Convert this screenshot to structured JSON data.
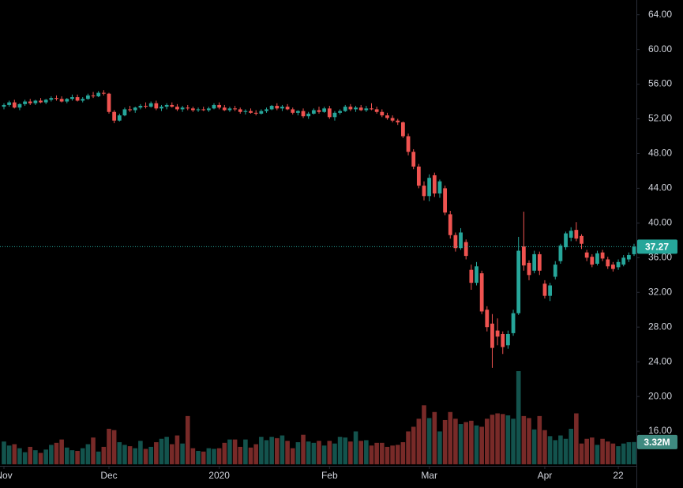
{
  "chart_data": {
    "type": "candlestick",
    "xlim": [
      -0.75,
      120.45
    ],
    "xticks": [
      {
        "value": 0,
        "label": "Nov"
      },
      {
        "value": 20,
        "label": "Dec"
      },
      {
        "value": 41,
        "label": "2020"
      },
      {
        "value": 62,
        "label": "Feb"
      },
      {
        "value": 81,
        "label": "Mar"
      },
      {
        "value": 103,
        "label": "Apr"
      },
      {
        "value": 117,
        "label": "22"
      }
    ],
    "ylim": [
      12.0,
      65.7
    ],
    "yticks": [
      {
        "value": 16,
        "label": "16.00"
      },
      {
        "value": 20,
        "label": "20.00"
      },
      {
        "value": 24,
        "label": "24.00"
      },
      {
        "value": 28,
        "label": "28.00"
      },
      {
        "value": 32,
        "label": "32.00"
      },
      {
        "value": 36,
        "label": "36.00"
      },
      {
        "value": 40,
        "label": "40.00"
      },
      {
        "value": 44,
        "label": "44.00"
      },
      {
        "value": 48,
        "label": "48.00"
      },
      {
        "value": 52,
        "label": "52.00"
      },
      {
        "value": 56,
        "label": "56.00"
      },
      {
        "value": 60,
        "label": "60.00"
      },
      {
        "value": 64,
        "label": "64.00"
      }
    ],
    "up_color": "#26a69a",
    "down_color": "#ef5350",
    "ohlc": [
      [
        53.4,
        53.8,
        53.1,
        53.6
      ],
      [
        53.6,
        54.1,
        53.4,
        53.9
      ],
      [
        53.9,
        54.2,
        53.2,
        53.3
      ],
      [
        53.3,
        53.8,
        53.0,
        53.7
      ],
      [
        53.7,
        54.2,
        53.5,
        54.0
      ],
      [
        54.0,
        54.3,
        53.6,
        53.8
      ],
      [
        53.8,
        54.2,
        53.6,
        54.1
      ],
      [
        54.1,
        54.4,
        53.8,
        53.9
      ],
      [
        53.9,
        54.3,
        53.7,
        54.2
      ],
      [
        54.2,
        54.6,
        54.0,
        54.4
      ],
      [
        54.4,
        54.7,
        54.1,
        54.3
      ],
      [
        54.3,
        54.6,
        53.9,
        54.0
      ],
      [
        54.0,
        54.4,
        53.8,
        54.3
      ],
      [
        54.3,
        54.8,
        54.1,
        54.5
      ],
      [
        54.5,
        54.8,
        54.0,
        54.1
      ],
      [
        54.1,
        54.5,
        53.9,
        54.3
      ],
      [
        54.3,
        54.9,
        54.2,
        54.7
      ],
      [
        54.7,
        55.1,
        54.4,
        54.6
      ],
      [
        54.6,
        55.2,
        54.5,
        55.0
      ],
      [
        55.0,
        55.3,
        54.7,
        54.9
      ],
      [
        54.9,
        55.0,
        52.6,
        52.8
      ],
      [
        52.8,
        53.0,
        51.5,
        51.8
      ],
      [
        51.8,
        52.6,
        51.7,
        52.4
      ],
      [
        52.4,
        53.3,
        52.3,
        53.1
      ],
      [
        53.1,
        53.5,
        52.8,
        53.0
      ],
      [
        53.0,
        53.4,
        52.7,
        53.3
      ],
      [
        53.3,
        53.7,
        53.1,
        53.5
      ],
      [
        53.5,
        53.9,
        53.2,
        53.4
      ],
      [
        53.4,
        54.0,
        53.3,
        53.8
      ],
      [
        53.8,
        54.1,
        53.0,
        53.2
      ],
      [
        53.2,
        53.6,
        52.9,
        53.4
      ],
      [
        53.4,
        53.8,
        53.1,
        53.6
      ],
      [
        53.6,
        53.9,
        53.3,
        53.4
      ],
      [
        53.4,
        53.7,
        52.9,
        53.1
      ],
      [
        53.1,
        53.5,
        52.8,
        53.3
      ],
      [
        53.3,
        53.6,
        53.0,
        53.2
      ],
      [
        53.2,
        53.4,
        52.8,
        53.0
      ],
      [
        53.0,
        53.3,
        52.8,
        53.1
      ],
      [
        53.1,
        53.4,
        52.9,
        53.0
      ],
      [
        53.0,
        53.4,
        52.8,
        53.2
      ],
      [
        53.2,
        53.8,
        53.1,
        53.6
      ],
      [
        53.6,
        53.9,
        53.1,
        53.3
      ],
      [
        53.3,
        53.6,
        52.9,
        53.0
      ],
      [
        53.0,
        53.4,
        52.8,
        53.2
      ],
      [
        53.2,
        53.5,
        52.9,
        53.1
      ],
      [
        53.1,
        53.3,
        52.6,
        52.8
      ],
      [
        52.8,
        53.1,
        52.5,
        52.9
      ],
      [
        52.9,
        53.2,
        52.6,
        52.7
      ],
      [
        52.7,
        53.0,
        52.4,
        52.6
      ],
      [
        52.6,
        53.1,
        52.5,
        52.9
      ],
      [
        52.9,
        53.3,
        52.7,
        53.1
      ],
      [
        53.1,
        53.6,
        53.0,
        53.5
      ],
      [
        53.5,
        53.8,
        53.0,
        53.2
      ],
      [
        53.2,
        53.6,
        52.9,
        53.4
      ],
      [
        53.4,
        53.7,
        53.0,
        53.1
      ],
      [
        53.1,
        53.3,
        52.5,
        52.7
      ],
      [
        52.7,
        53.0,
        52.4,
        52.9
      ],
      [
        52.9,
        53.2,
        52.1,
        52.3
      ],
      [
        52.3,
        52.8,
        52.0,
        52.6
      ],
      [
        52.6,
        53.2,
        52.5,
        53.0
      ],
      [
        53.0,
        53.4,
        52.6,
        52.8
      ],
      [
        52.8,
        53.4,
        52.7,
        53.2
      ],
      [
        53.2,
        53.5,
        52.0,
        52.2
      ],
      [
        52.2,
        52.9,
        51.8,
        52.7
      ],
      [
        52.7,
        53.1,
        52.5,
        52.9
      ],
      [
        52.9,
        53.6,
        52.8,
        53.4
      ],
      [
        53.4,
        53.7,
        52.9,
        53.1
      ],
      [
        53.1,
        53.5,
        52.8,
        53.3
      ],
      [
        53.3,
        53.6,
        52.9,
        53.0
      ],
      [
        53.0,
        53.5,
        52.8,
        53.2
      ],
      [
        53.2,
        53.8,
        53.0,
        53.1
      ],
      [
        53.1,
        53.4,
        52.6,
        52.8
      ],
      [
        52.8,
        53.1,
        52.2,
        52.4
      ],
      [
        52.4,
        52.7,
        51.9,
        52.1
      ],
      [
        52.1,
        52.4,
        51.6,
        51.8
      ],
      [
        51.8,
        52.0,
        51.3,
        51.6
      ],
      [
        51.6,
        51.7,
        49.8,
        50.0
      ],
      [
        50.0,
        50.3,
        47.8,
        48.2
      ],
      [
        48.2,
        48.5,
        46.2,
        46.5
      ],
      [
        46.5,
        46.8,
        44.0,
        44.3
      ],
      [
        44.3,
        44.8,
        42.6,
        43.1
      ],
      [
        43.1,
        45.6,
        42.5,
        45.2
      ],
      [
        45.5,
        45.8,
        43.0,
        43.4
      ],
      [
        43.4,
        45.0,
        42.9,
        44.8
      ],
      [
        44.0,
        44.3,
        40.9,
        41.2
      ],
      [
        41.0,
        41.4,
        38.2,
        38.6
      ],
      [
        38.6,
        38.9,
        36.7,
        37.1
      ],
      [
        37.1,
        39.4,
        36.9,
        38.9
      ],
      [
        37.8,
        38.1,
        35.8,
        36.2
      ],
      [
        34.6,
        35.2,
        32.3,
        33.1
      ],
      [
        33.1,
        35.5,
        32.8,
        35.0
      ],
      [
        34.2,
        34.5,
        29.5,
        29.8
      ],
      [
        30.0,
        30.4,
        27.5,
        28.0
      ],
      [
        28.4,
        29.5,
        23.3,
        25.6
      ],
      [
        27.6,
        29.0,
        25.9,
        26.9
      ],
      [
        27.2,
        27.5,
        24.9,
        25.7
      ],
      [
        25.9,
        27.6,
        25.5,
        27.2
      ],
      [
        27.3,
        30.0,
        27.0,
        29.6
      ],
      [
        29.6,
        38.4,
        29.4,
        36.8
      ],
      [
        37.3,
        41.3,
        34.5,
        35.1
      ],
      [
        35.4,
        35.7,
        33.4,
        34.0
      ],
      [
        34.5,
        36.8,
        34.2,
        36.4
      ],
      [
        36.4,
        36.7,
        34.0,
        34.5
      ],
      [
        33.0,
        33.4,
        31.3,
        31.6
      ],
      [
        31.6,
        33.1,
        31.0,
        32.8
      ],
      [
        33.8,
        35.6,
        33.5,
        35.2
      ],
      [
        35.6,
        37.6,
        35.3,
        37.4
      ],
      [
        37.2,
        39.0,
        36.9,
        38.8
      ],
      [
        38.3,
        39.5,
        37.9,
        39.1
      ],
      [
        39.2,
        40.1,
        37.9,
        38.2
      ],
      [
        38.5,
        38.7,
        37.0,
        37.6
      ],
      [
        36.6,
        36.9,
        35.6,
        36.0
      ],
      [
        36.1,
        36.4,
        34.9,
        35.2
      ],
      [
        35.3,
        36.8,
        35.1,
        36.5
      ],
      [
        36.6,
        36.9,
        35.6,
        35.9
      ],
      [
        35.8,
        36.1,
        34.7,
        35.0
      ],
      [
        35.2,
        35.5,
        34.4,
        34.7
      ],
      [
        34.9,
        35.8,
        34.6,
        35.5
      ],
      [
        35.2,
        36.3,
        35.0,
        36.0
      ],
      [
        35.8,
        36.6,
        35.5,
        36.3
      ],
      [
        36.4,
        37.6,
        36.2,
        37.27
      ]
    ],
    "volume": {
      "values": [
        3.4,
        2.8,
        3.0,
        2.4,
        1.8,
        2.6,
        2.1,
        1.7,
        2.2,
        2.9,
        3.2,
        3.7,
        2.5,
        2.1,
        2.0,
        2.4,
        3.0,
        4.0,
        1.9,
        2.6,
        5.3,
        5.1,
        3.3,
        2.9,
        2.7,
        2.4,
        3.5,
        2.3,
        2.6,
        3.3,
        3.8,
        4.1,
        3.0,
        4.3,
        3.1,
        7.2,
        2.4,
        2.0,
        1.9,
        2.4,
        2.3,
        2.4,
        3.2,
        3.7,
        3.7,
        2.6,
        3.7,
        2.5,
        3.0,
        4.1,
        3.6,
        4.1,
        3.9,
        4.3,
        3.5,
        2.4,
        3.3,
        4.4,
        3.4,
        3.2,
        3.5,
        2.8,
        3.5,
        3.1,
        4.1,
        4.0,
        3.4,
        4.9,
        3.5,
        3.6,
        2.8,
        3.2,
        3.2,
        2.6,
        2.8,
        2.9,
        3.3,
        4.9,
        5.6,
        6.8,
        8.8,
        6.9,
        7.8,
        4.9,
        6.6,
        7.8,
        6.8,
        6.0,
        6.3,
        6.5,
        5.8,
        5.6,
        6.8,
        7.4,
        7.6,
        7.5,
        7.3,
        6.8,
        13.9,
        7.2,
        6.9,
        5.2,
        7.2,
        5.1,
        4.2,
        3.6,
        4.3,
        3.8,
        5.3,
        7.6,
        3.1,
        3.8,
        4.0,
        2.9,
        3.8,
        3.4,
        3.1,
        2.7,
        3.1,
        3.3,
        3.32
      ],
      "last_value_label": "3.32M"
    }
  }
}
